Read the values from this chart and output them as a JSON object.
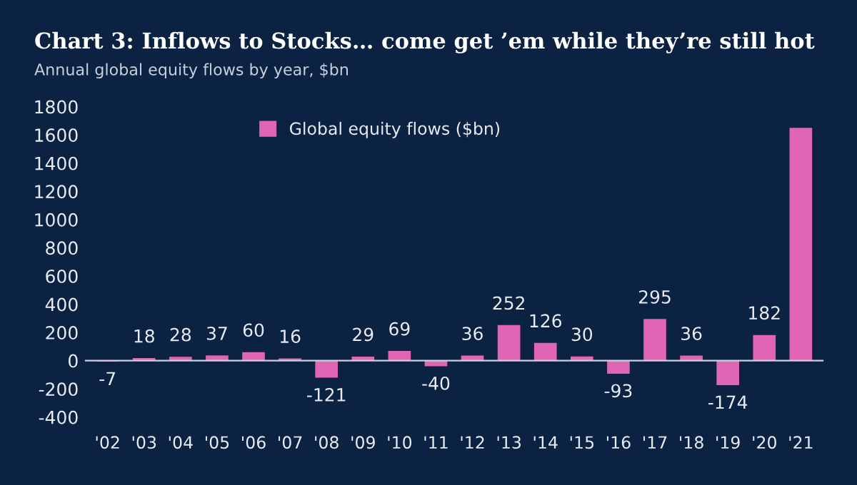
{
  "chart_data": {
    "type": "bar",
    "title": "Chart 3: Inflows to Stocks… come get ’em while they’re still hot",
    "subtitle": "Annual global equity flows by year, $bn",
    "categories": [
      "'02",
      "'03",
      "'04",
      "'05",
      "'06",
      "'07",
      "'08",
      "'09",
      "'10",
      "'11",
      "'12",
      "'13",
      "'14",
      "'15",
      "'16",
      "'17",
      "'18",
      "'19",
      "'20",
      "'21"
    ],
    "series": [
      {
        "name": "Global equity flows ($bn)",
        "color": "#e065b5",
        "values": [
          -7,
          18,
          28,
          37,
          60,
          16,
          -121,
          29,
          69,
          -40,
          36,
          252,
          126,
          30,
          -93,
          295,
          36,
          -174,
          182,
          1650
        ],
        "value_labels": [
          "-7",
          "18",
          "28",
          "37",
          "60",
          "16",
          "-121",
          "29",
          "69",
          "-40",
          "36",
          "252",
          "126",
          "30",
          "-93",
          "295",
          "36",
          "-174",
          "182",
          null
        ]
      }
    ],
    "ylim": [
      -400,
      1800
    ],
    "yticks": [
      -400,
      -200,
      0,
      200,
      400,
      600,
      800,
      1000,
      1200,
      1400,
      1600,
      1800
    ],
    "legend": "top"
  }
}
